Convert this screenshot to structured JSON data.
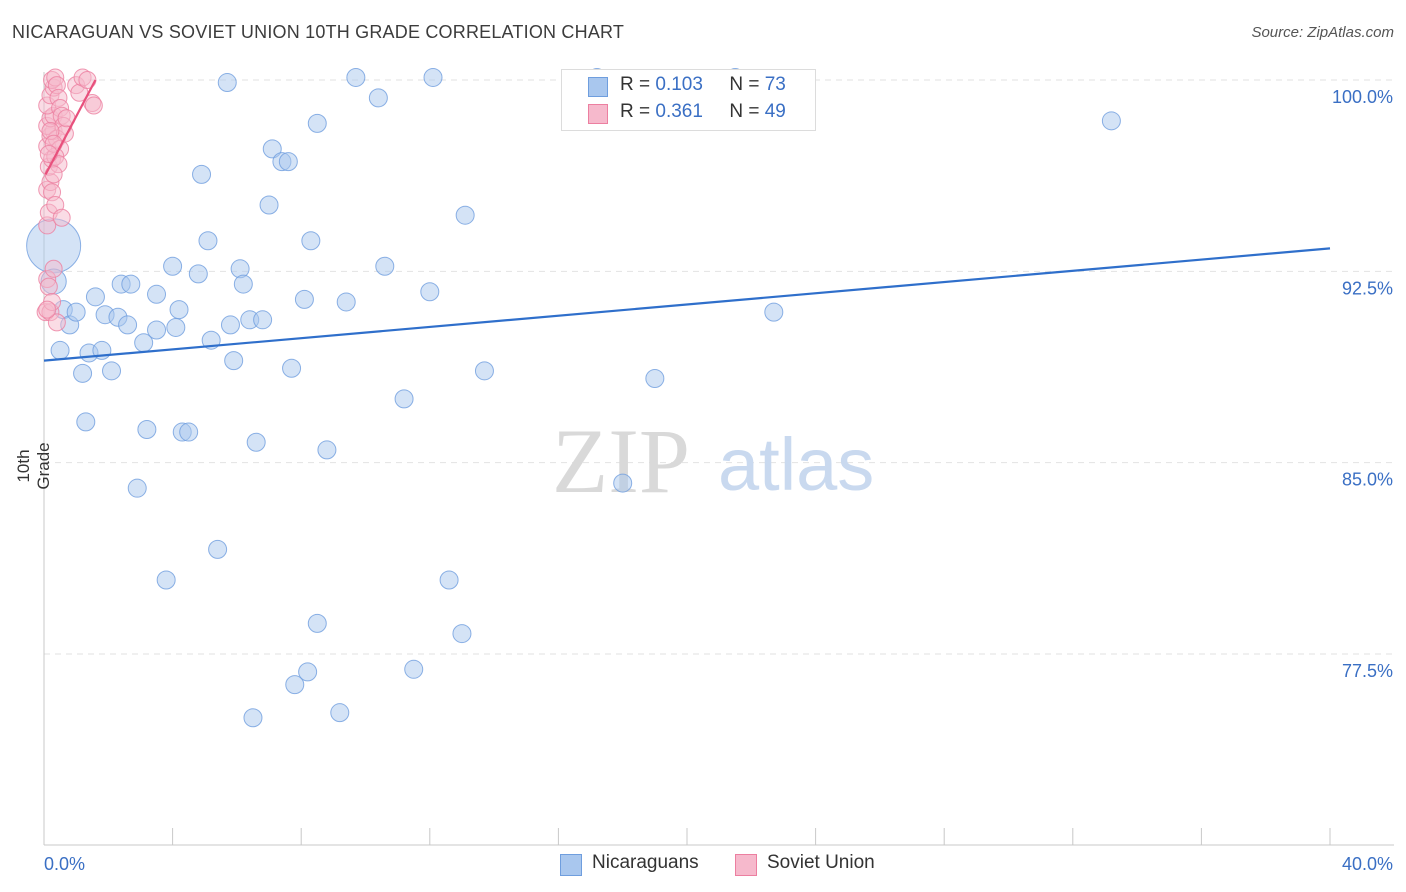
{
  "header": {
    "title": "NICARAGUAN VS SOVIET UNION 10TH GRADE CORRELATION CHART",
    "source": "Source: ZipAtlas.com"
  },
  "watermark": {
    "zip": "ZIP",
    "atlas": "atlas"
  },
  "legend": {
    "rows": [
      {
        "r_label": "R =",
        "r_value": "0.103",
        "n_label": "N =",
        "n_value": "73"
      },
      {
        "r_label": "R =",
        "r_value": "0.361",
        "n_label": "N =",
        "n_value": "49"
      }
    ]
  },
  "bottom_legend": {
    "items": [
      "Nicaraguans",
      "Soviet Union"
    ]
  },
  "chart_data": {
    "type": "scatter",
    "title": "NICARAGUAN VS SOVIET UNION 10TH GRADE CORRELATION CHART",
    "xlabel": "",
    "ylabel": "10th Grade",
    "xlim": [
      0,
      40
    ],
    "ylim": [
      70.0,
      101.0
    ],
    "x_tick_labels": [
      "0.0%",
      "40.0%"
    ],
    "y_ticks": [
      100.0,
      92.5,
      85.0,
      77.5
    ],
    "y_tick_labels": [
      "100.0%",
      "92.5%",
      "85.0%",
      "77.5%"
    ],
    "grid": true,
    "colors": {
      "blue": "#a9c7ee",
      "blue_edge": "#6f9ede",
      "blue_line": "#2f6fcb",
      "pink": "#f6b9cc",
      "pink_edge": "#ec7fa0",
      "pink_line": "#e8507c",
      "axis_text": "#3a6fc4"
    },
    "series": [
      {
        "name": "Nicaraguans",
        "color": "blue",
        "trend": {
          "x": [
            0,
            40
          ],
          "y": [
            89.0,
            93.4
          ]
        },
        "points": [
          [
            0.3,
            93.5,
            3
          ],
          [
            0.3,
            92.1,
            1.4
          ],
          [
            0.5,
            89.4,
            1
          ],
          [
            0.6,
            91.0,
            1
          ],
          [
            0.8,
            90.4,
            1
          ],
          [
            1.0,
            90.9,
            1
          ],
          [
            1.2,
            88.5,
            1
          ],
          [
            1.3,
            86.6,
            1
          ],
          [
            1.4,
            89.3,
            1
          ],
          [
            1.6,
            91.5,
            1
          ],
          [
            1.8,
            89.4,
            1
          ],
          [
            1.9,
            90.8,
            1
          ],
          [
            2.1,
            88.6,
            1
          ],
          [
            2.3,
            90.7,
            1
          ],
          [
            2.4,
            92.0,
            1
          ],
          [
            2.6,
            90.4,
            1
          ],
          [
            2.7,
            92.0,
            1
          ],
          [
            2.9,
            84.0,
            1
          ],
          [
            3.1,
            89.7,
            1
          ],
          [
            3.2,
            86.3,
            1
          ],
          [
            3.5,
            91.6,
            1
          ],
          [
            3.5,
            90.2,
            1
          ],
          [
            3.8,
            80.4,
            1
          ],
          [
            4.0,
            92.7,
            1
          ],
          [
            4.1,
            90.3,
            1
          ],
          [
            4.2,
            91.0,
            1
          ],
          [
            4.3,
            86.2,
            1
          ],
          [
            4.5,
            86.2,
            1
          ],
          [
            4.8,
            92.4,
            1
          ],
          [
            4.9,
            96.3,
            1
          ],
          [
            5.1,
            93.7,
            1
          ],
          [
            5.2,
            89.8,
            1
          ],
          [
            5.4,
            81.6,
            1
          ],
          [
            5.7,
            99.9,
            1
          ],
          [
            5.8,
            90.4,
            1
          ],
          [
            5.9,
            89.0,
            1
          ],
          [
            6.1,
            92.6,
            1
          ],
          [
            6.2,
            92.0,
            1
          ],
          [
            6.4,
            90.6,
            1
          ],
          [
            6.5,
            75.0,
            1
          ],
          [
            6.6,
            85.8,
            1
          ],
          [
            6.8,
            90.6,
            1
          ],
          [
            7.0,
            95.1,
            1
          ],
          [
            7.1,
            97.3,
            1
          ],
          [
            7.4,
            96.8,
            1
          ],
          [
            7.6,
            96.8,
            1
          ],
          [
            7.7,
            88.7,
            1
          ],
          [
            7.8,
            76.3,
            1
          ],
          [
            8.1,
            91.4,
            1
          ],
          [
            8.2,
            76.8,
            1
          ],
          [
            8.3,
            93.7,
            1
          ],
          [
            8.5,
            98.3,
            1
          ],
          [
            8.5,
            78.7,
            1
          ],
          [
            8.8,
            85.5,
            1
          ],
          [
            9.2,
            75.2,
            1
          ],
          [
            9.4,
            91.3,
            1
          ],
          [
            9.7,
            100.1,
            1
          ],
          [
            10.4,
            99.3,
            1
          ],
          [
            10.6,
            92.7,
            1
          ],
          [
            11.2,
            87.5,
            1
          ],
          [
            11.5,
            76.9,
            1
          ],
          [
            12.0,
            91.7,
            1
          ],
          [
            12.1,
            100.1,
            1
          ],
          [
            12.6,
            80.4,
            1
          ],
          [
            13.0,
            78.3,
            1
          ],
          [
            13.1,
            94.7,
            1
          ],
          [
            13.7,
            88.6,
            1
          ],
          [
            17.2,
            100.1,
            1
          ],
          [
            18.0,
            84.2,
            1
          ],
          [
            19.0,
            88.3,
            1
          ],
          [
            21.5,
            100.1,
            1
          ],
          [
            22.7,
            90.9,
            1
          ],
          [
            33.2,
            98.4,
            1
          ]
        ]
      },
      {
        "name": "Soviet Union",
        "color": "pink",
        "trend": {
          "x": [
            0.05,
            1.6
          ],
          "y": [
            96.3,
            100.0
          ]
        },
        "points": [
          [
            0.05,
            90.9,
            1
          ],
          [
            0.1,
            92.2,
            1
          ],
          [
            0.15,
            91.9,
            1
          ],
          [
            0.2,
            90.9,
            1
          ],
          [
            0.1,
            94.3,
            1
          ],
          [
            0.15,
            94.8,
            1
          ],
          [
            0.1,
            95.7,
            1
          ],
          [
            0.2,
            96.0,
            1
          ],
          [
            0.15,
            96.6,
            1
          ],
          [
            0.25,
            96.9,
            1
          ],
          [
            0.1,
            97.4,
            1
          ],
          [
            0.2,
            97.8,
            1
          ],
          [
            0.3,
            98.0,
            1
          ],
          [
            0.1,
            98.2,
            1
          ],
          [
            0.2,
            98.5,
            1
          ],
          [
            0.3,
            98.6,
            1
          ],
          [
            0.1,
            99.0,
            1
          ],
          [
            0.2,
            99.4,
            1
          ],
          [
            0.3,
            99.7,
            1
          ],
          [
            0.25,
            100.0,
            1
          ],
          [
            0.35,
            100.1,
            1
          ],
          [
            0.4,
            99.8,
            1
          ],
          [
            0.45,
            99.3,
            1
          ],
          [
            0.5,
            98.9,
            1
          ],
          [
            0.55,
            98.6,
            1
          ],
          [
            0.6,
            98.2,
            1
          ],
          [
            0.4,
            97.7,
            1
          ],
          [
            0.5,
            97.3,
            1
          ],
          [
            0.35,
            97.0,
            1
          ],
          [
            0.45,
            96.7,
            1
          ],
          [
            0.3,
            96.3,
            1
          ],
          [
            0.25,
            95.6,
            1
          ],
          [
            0.35,
            95.1,
            1
          ],
          [
            0.55,
            94.6,
            1
          ],
          [
            0.65,
            97.9,
            1
          ],
          [
            0.7,
            98.5,
            1
          ],
          [
            0.2,
            98.0,
            1
          ],
          [
            0.3,
            97.5,
            1
          ],
          [
            0.15,
            97.1,
            1
          ],
          [
            1.0,
            99.8,
            1
          ],
          [
            1.1,
            99.5,
            1
          ],
          [
            1.2,
            100.1,
            1
          ],
          [
            1.35,
            100.0,
            1
          ],
          [
            1.5,
            99.1,
            1
          ],
          [
            1.55,
            99.0,
            1
          ],
          [
            0.25,
            91.3,
            1
          ],
          [
            0.4,
            90.5,
            1
          ],
          [
            0.1,
            91.0,
            1
          ],
          [
            0.3,
            92.6,
            1
          ]
        ]
      }
    ]
  }
}
